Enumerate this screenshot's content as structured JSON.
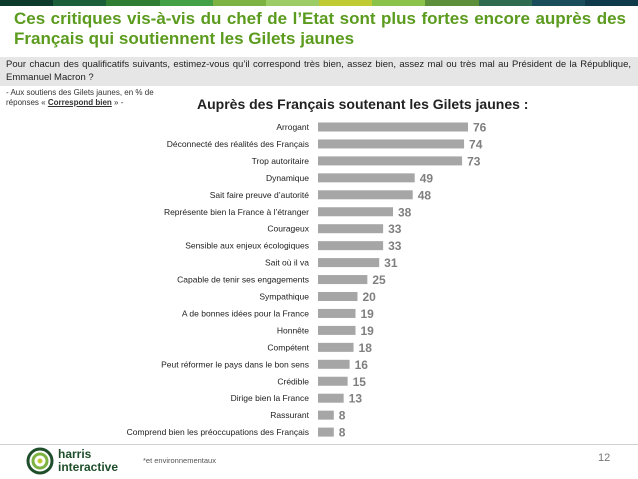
{
  "header": {
    "title": "Ces critiques vis-à-vis du chef de l’Etat sont plus fortes encore auprès des Français qui soutiennent les Gilets jaunes",
    "bar_colors": [
      "#0c3a2b",
      "#1b5e3a",
      "#2e7d32",
      "#43a047",
      "#7cb342",
      "#9ccc65",
      "#c0ca33",
      "#8bc34a",
      "#5d8f3a",
      "#2e6b4f",
      "#1a4d5c",
      "#0f3a4a"
    ]
  },
  "question": "Pour chacun des qualificatifs suivants, estimez-vous qu’il correspond très bien, assez bien, assez mal ou très mal au Président de la République, Emmanuel Macron ?",
  "note": {
    "prefix": "- Aux soutiens des Gilets jaunes, en % de réponses « ",
    "emph": "Correspond bien",
    "suffix": " » -"
  },
  "footer": {
    "note": "*et environnementaux",
    "page": "12",
    "logo_line1": "harris",
    "logo_line2": "interactive"
  },
  "chart_data": {
    "type": "bar",
    "orientation": "horizontal",
    "title": "Auprès des Français soutenant les Gilets jaunes :",
    "bar_color": "#a6a6a6",
    "label_color": "#7f7f7f",
    "xlim": [
      0,
      76
    ],
    "categories": [
      "Arrogant",
      "Déconnecté des réalités des Français",
      "Trop autoritaire",
      "Dynamique",
      "Sait faire preuve d’autorité",
      "Représente bien la France à l’étranger",
      "Courageux",
      "Sensible aux enjeux écologiques",
      "Sait où il va",
      "Capable de tenir ses engagements",
      "Sympathique",
      "A de bonnes idées pour la France",
      "Honnête",
      "Compétent",
      "Peut réformer le pays dans le bon sens",
      "Crédible",
      "Dirige bien la France",
      "Rassurant",
      "Comprend bien les préoccupations des Français"
    ],
    "values": [
      76,
      74,
      73,
      49,
      48,
      38,
      33,
      33,
      31,
      25,
      20,
      19,
      19,
      18,
      16,
      15,
      13,
      8,
      8
    ]
  }
}
